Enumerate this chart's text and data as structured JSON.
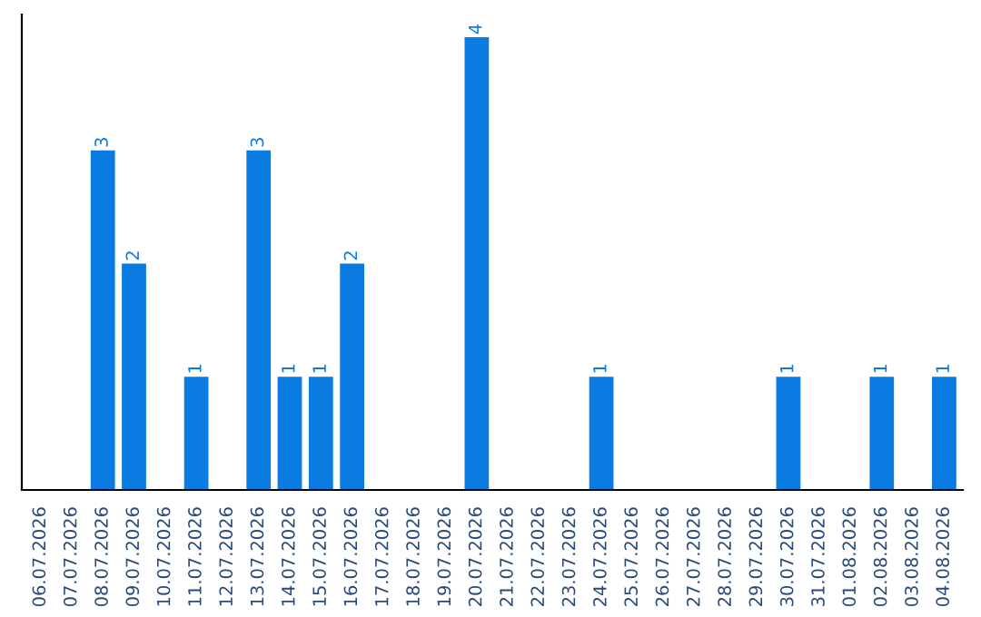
{
  "chart_data": {
    "type": "bar",
    "categories": [
      "06.07.2026",
      "07.07.2026",
      "08.07.2026",
      "09.07.2026",
      "10.07.2026",
      "11.07.2026",
      "12.07.2026",
      "13.07.2026",
      "14.07.2026",
      "15.07.2026",
      "16.07.2026",
      "17.07.2026",
      "18.07.2026",
      "19.07.2026",
      "20.07.2026",
      "21.07.2026",
      "22.07.2026",
      "23.07.2026",
      "24.07.2026",
      "25.07.2026",
      "26.07.2026",
      "27.07.2026",
      "28.07.2026",
      "29.07.2026",
      "30.07.2026",
      "31.07.2026",
      "01.08.2026",
      "02.08.2026",
      "03.08.2026",
      "04.08.2026"
    ],
    "values": [
      0,
      0,
      3,
      2,
      0,
      1,
      0,
      3,
      1,
      1,
      2,
      0,
      0,
      0,
      4,
      0,
      0,
      0,
      1,
      0,
      0,
      0,
      0,
      0,
      1,
      0,
      0,
      1,
      0,
      1
    ],
    "value_labels": [
      null,
      null,
      "3",
      "2",
      null,
      "1",
      null,
      "3",
      "1",
      "1",
      "2",
      null,
      null,
      null,
      "4",
      null,
      null,
      null,
      "1",
      null,
      null,
      null,
      null,
      null,
      "1",
      null,
      null,
      "1",
      null,
      "1"
    ],
    "color": "#0a7be0",
    "ylim": [
      0,
      4.2
    ],
    "tick_labels": "x",
    "grid": false,
    "legend": false
  }
}
